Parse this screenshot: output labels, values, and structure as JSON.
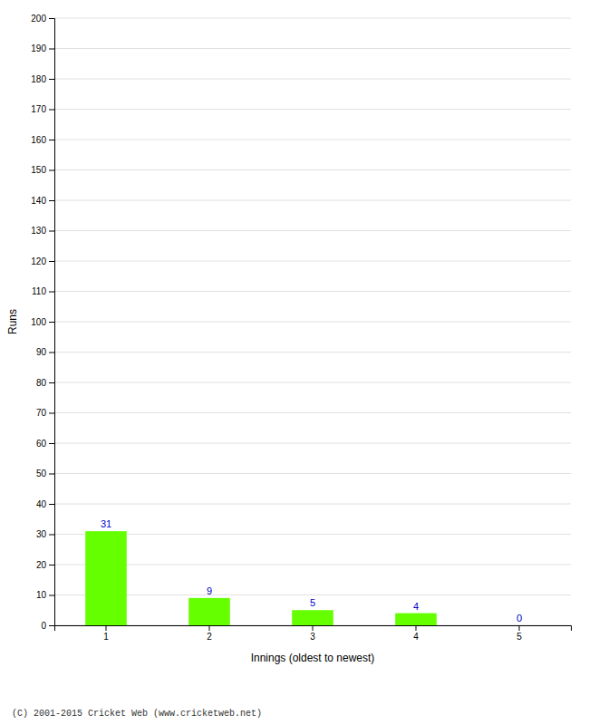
{
  "chart_data": {
    "type": "bar",
    "categories": [
      "1",
      "2",
      "3",
      "4",
      "5"
    ],
    "values": [
      31,
      9,
      5,
      4,
      0
    ],
    "color": "#66ff00",
    "xlabel": "Innings (oldest to newest)",
    "ylabel": "Runs",
    "ylim": [
      0,
      200
    ],
    "yticks": [
      0,
      10,
      20,
      30,
      40,
      50,
      60,
      70,
      80,
      90,
      100,
      110,
      120,
      130,
      140,
      150,
      160,
      170,
      180,
      190,
      200
    ],
    "grid": true,
    "data_labels": true,
    "annotations": [
      "(C) 2001-2015 Cricket Web (www.cricketweb.net)"
    ]
  }
}
